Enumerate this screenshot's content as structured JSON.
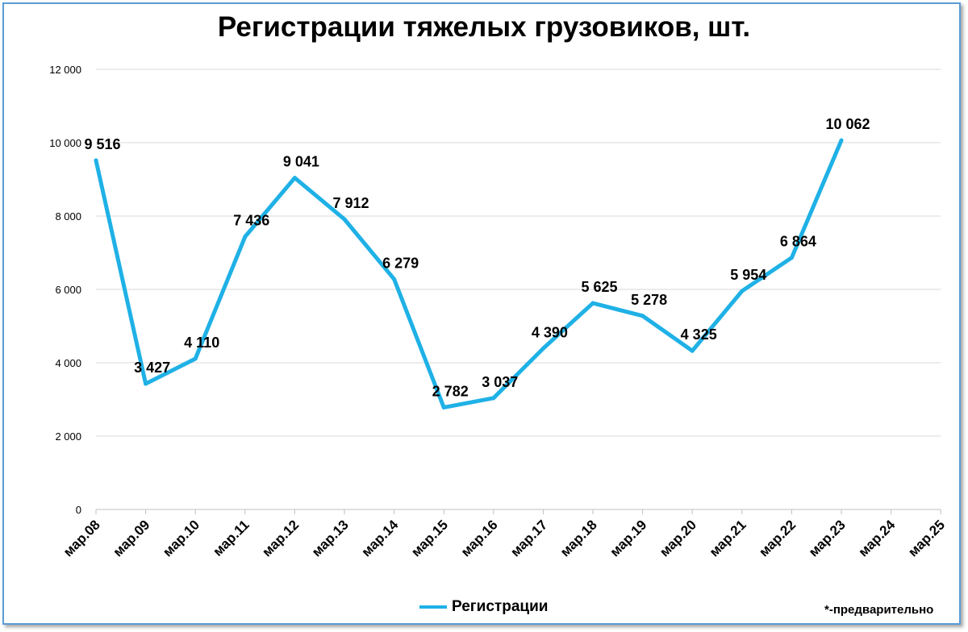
{
  "title": "Регистрации тяжелых грузовиков, шт.",
  "footnote": "*-предварительно",
  "colors": {
    "line": "#1fb1e6",
    "grid": "#d9d9d9",
    "border": "#5b9bd5"
  },
  "chart_data": {
    "type": "line",
    "title": "Регистрации тяжелых грузовиков, шт.",
    "categories": [
      "мар.08",
      "мар.09",
      "мар.10",
      "мар.11",
      "мар.12",
      "мар.13",
      "мар.14",
      "мар.15",
      "мар.16",
      "мар.17",
      "мар.18",
      "мар.19",
      "мар.20",
      "мар.21",
      "мар.22",
      "мар.23",
      "мар.24",
      "мар.25"
    ],
    "series": [
      {
        "name": "Регистрации",
        "values": [
          9516,
          3427,
          4110,
          7436,
          9041,
          7912,
          6279,
          2782,
          3037,
          4390,
          5625,
          5278,
          4325,
          5954,
          6864,
          10062,
          null,
          null
        ],
        "labels": [
          "9 516",
          "3 427",
          "4 110",
          "7 436",
          "9 041",
          "7 912",
          "6 279",
          "2 782",
          "3 037",
          "4 390",
          "5 625",
          "5 278",
          "4 325",
          "5 954",
          "6 864",
          "10 062",
          "",
          ""
        ]
      }
    ],
    "ylim": [
      0,
      12000
    ],
    "yticks": [
      0,
      2000,
      4000,
      6000,
      8000,
      10000,
      12000
    ],
    "ytick_labels": [
      "0",
      "2 000",
      "4 000",
      "6 000",
      "8 000",
      "10 000",
      "12 000"
    ],
    "grid": true,
    "legend": "bottom"
  }
}
